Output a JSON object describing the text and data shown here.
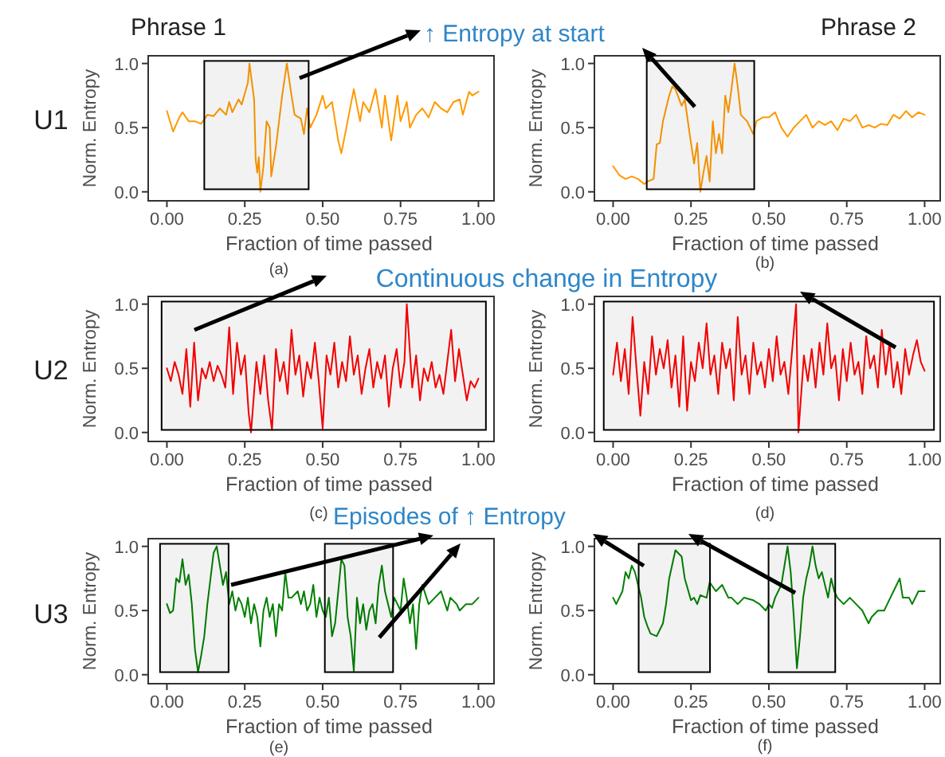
{
  "chart_data": [
    {
      "type": "line",
      "title": "Phrase 1",
      "xlabel": "Fraction of time passed",
      "ylabel": "Norm. Entropy",
      "xlim": [
        -0.06,
        1.05
      ],
      "xticks": [
        {
          "value": 0,
          "label": "0.00"
        },
        {
          "value": 0.25,
          "label": "0.25"
        },
        {
          "value": 0.5,
          "label": "0.50"
        },
        {
          "value": 0.75,
          "label": "0.75"
        },
        {
          "value": 1,
          "label": "1.00"
        }
      ],
      "ylim": [
        -0.07,
        1.06
      ],
      "yticks": [
        {
          "value": 0,
          "label": "0.0"
        },
        {
          "value": 0.5,
          "label": "0.5"
        },
        {
          "value": 1,
          "label": "1.0"
        }
      ],
      "series": [
        {
          "color": "#ff9900",
          "x": [
            0,
            0.02,
            0.04,
            0.05,
            0.07,
            0.09,
            0.11,
            0.13,
            0.15,
            0.17,
            0.19,
            0.2,
            0.21,
            0.23,
            0.24,
            0.26,
            0.265,
            0.28,
            0.285,
            0.29,
            0.295,
            0.3,
            0.31,
            0.32,
            0.33,
            0.335,
            0.35,
            0.37,
            0.385,
            0.4,
            0.41,
            0.43,
            0.44,
            0.45,
            0.46,
            0.48,
            0.5,
            0.51,
            0.53,
            0.55,
            0.56,
            0.58,
            0.6,
            0.62,
            0.63,
            0.65,
            0.67,
            0.69,
            0.7,
            0.72,
            0.74,
            0.75,
            0.77,
            0.78,
            0.8,
            0.82,
            0.84,
            0.86,
            0.88,
            0.9,
            0.92,
            0.94,
            0.95,
            0.97,
            0.98,
            1.0
          ],
          "values": [
            0.63,
            0.47,
            0.58,
            0.62,
            0.55,
            0.55,
            0.53,
            0.6,
            0.59,
            0.65,
            0.6,
            0.7,
            0.62,
            0.72,
            0.68,
            0.85,
            1.0,
            0.72,
            0.25,
            0.15,
            0.27,
            0.0,
            0.2,
            0.55,
            0.5,
            0.12,
            0.35,
            0.75,
            1.0,
            0.75,
            0.6,
            0.57,
            0.45,
            0.65,
            0.5,
            0.6,
            0.75,
            0.65,
            0.7,
            0.4,
            0.3,
            0.55,
            0.8,
            0.55,
            0.7,
            0.62,
            0.8,
            0.5,
            0.75,
            0.4,
            0.75,
            0.55,
            0.7,
            0.5,
            0.6,
            0.65,
            0.58,
            0.7,
            0.65,
            0.62,
            0.7,
            0.72,
            0.6,
            0.78,
            0.75,
            0.78
          ]
        }
      ],
      "bands": [
        {
          "axis": "x",
          "from": 0.12,
          "to": 0.455,
          "color": "#000000"
        }
      ],
      "annotations": [
        "U1",
        "↑ Entropy at start",
        "(a)"
      ]
    },
    {
      "type": "line",
      "title": "Phrase 2",
      "xlabel": "Fraction of time passed",
      "ylabel": "Norm. Entropy",
      "xlim": [
        -0.06,
        1.05
      ],
      "xticks": [
        {
          "value": 0,
          "label": "0.00"
        },
        {
          "value": 0.25,
          "label": "0.25"
        },
        {
          "value": 0.5,
          "label": "0.50"
        },
        {
          "value": 0.75,
          "label": "0.75"
        },
        {
          "value": 1,
          "label": "1.00"
        }
      ],
      "ylim": [
        -0.07,
        1.06
      ],
      "yticks": [
        {
          "value": 0,
          "label": "0.0"
        },
        {
          "value": 0.5,
          "label": "0.5"
        },
        {
          "value": 1,
          "label": "1.0"
        }
      ],
      "series": [
        {
          "color": "#ff9900",
          "x": [
            0,
            0.02,
            0.04,
            0.06,
            0.08,
            0.1,
            0.11,
            0.13,
            0.14,
            0.15,
            0.16,
            0.18,
            0.19,
            0.2,
            0.22,
            0.23,
            0.24,
            0.25,
            0.26,
            0.27,
            0.28,
            0.29,
            0.3,
            0.31,
            0.32,
            0.33,
            0.34,
            0.35,
            0.36,
            0.37,
            0.38,
            0.39,
            0.4,
            0.41,
            0.43,
            0.45,
            0.46,
            0.48,
            0.5,
            0.52,
            0.54,
            0.56,
            0.58,
            0.6,
            0.62,
            0.64,
            0.66,
            0.68,
            0.7,
            0.72,
            0.74,
            0.76,
            0.78,
            0.8,
            0.82,
            0.84,
            0.86,
            0.88,
            0.9,
            0.92,
            0.94,
            0.96,
            0.98,
            1.0
          ],
          "values": [
            0.2,
            0.13,
            0.1,
            0.12,
            0.1,
            0.06,
            0.08,
            0.1,
            0.37,
            0.38,
            0.55,
            0.75,
            0.82,
            0.8,
            0.67,
            0.72,
            0.55,
            0.38,
            0.22,
            0.38,
            0.0,
            0.15,
            0.28,
            0.08,
            0.55,
            0.3,
            0.45,
            0.3,
            0.75,
            0.62,
            0.8,
            1.0,
            0.82,
            0.6,
            0.55,
            0.45,
            0.55,
            0.58,
            0.58,
            0.62,
            0.5,
            0.43,
            0.5,
            0.55,
            0.6,
            0.5,
            0.55,
            0.52,
            0.55,
            0.48,
            0.57,
            0.55,
            0.6,
            0.5,
            0.52,
            0.5,
            0.53,
            0.52,
            0.6,
            0.57,
            0.63,
            0.58,
            0.62,
            0.6
          ]
        }
      ],
      "bands": [
        {
          "axis": "x",
          "from": 0.108,
          "to": 0.453,
          "color": "#000000"
        }
      ],
      "annotations": [
        "(b)"
      ]
    },
    {
      "type": "line",
      "xlabel": "Fraction of time passed",
      "ylabel": "Norm. Entropy",
      "xlim": [
        -0.06,
        1.05
      ],
      "xticks": [
        {
          "value": 0,
          "label": "0.00"
        },
        {
          "value": 0.25,
          "label": "0.25"
        },
        {
          "value": 0.5,
          "label": "0.50"
        },
        {
          "value": 0.75,
          "label": "0.75"
        },
        {
          "value": 1,
          "label": "1.00"
        }
      ],
      "ylim": [
        -0.07,
        1.06
      ],
      "yticks": [
        {
          "value": 0,
          "label": "0.0"
        },
        {
          "value": 0.5,
          "label": "0.5"
        },
        {
          "value": 1,
          "label": "1.0"
        }
      ],
      "series": [
        {
          "color": "#ff0000",
          "x": [
            0,
            0.0125,
            0.025,
            0.0375,
            0.05,
            0.0625,
            0.075,
            0.0875,
            0.1,
            0.1125,
            0.125,
            0.1375,
            0.15,
            0.1625,
            0.175,
            0.1875,
            0.2,
            0.2125,
            0.225,
            0.2375,
            0.25,
            0.2625,
            0.27,
            0.2875,
            0.3,
            0.3125,
            0.325,
            0.3375,
            0.35,
            0.3625,
            0.375,
            0.3875,
            0.4,
            0.4125,
            0.425,
            0.4375,
            0.45,
            0.4625,
            0.475,
            0.4875,
            0.5,
            0.5125,
            0.525,
            0.5375,
            0.55,
            0.5625,
            0.575,
            0.5875,
            0.6,
            0.6125,
            0.625,
            0.6375,
            0.65,
            0.6625,
            0.675,
            0.6875,
            0.7,
            0.7125,
            0.725,
            0.7375,
            0.75,
            0.7625,
            0.77,
            0.7875,
            0.8,
            0.8125,
            0.825,
            0.8375,
            0.85,
            0.8625,
            0.875,
            0.8875,
            0.9,
            0.9125,
            0.925,
            0.9375,
            0.95,
            0.9625,
            0.975,
            0.9875,
            1.0
          ],
          "values": [
            0.5,
            0.4,
            0.55,
            0.45,
            0.3,
            0.65,
            0.2,
            0.7,
            0.25,
            0.5,
            0.42,
            0.55,
            0.4,
            0.52,
            0.45,
            0.35,
            0.82,
            0.3,
            0.7,
            0.45,
            0.6,
            0.15,
            0.0,
            0.55,
            0.3,
            0.6,
            0.25,
            0.02,
            0.65,
            0.4,
            0.55,
            0.3,
            0.8,
            0.45,
            0.6,
            0.28,
            0.55,
            0.42,
            0.7,
            0.4,
            0.03,
            0.6,
            0.45,
            0.7,
            0.35,
            0.55,
            0.4,
            0.75,
            0.45,
            0.6,
            0.3,
            0.5,
            0.65,
            0.35,
            0.55,
            0.42,
            0.6,
            0.2,
            0.5,
            0.65,
            0.35,
            0.55,
            1.0,
            0.35,
            0.6,
            0.25,
            0.5,
            0.4,
            0.55,
            0.35,
            0.45,
            0.3,
            0.55,
            0.8,
            0.4,
            0.65,
            0.45,
            0.25,
            0.4,
            0.35,
            0.42
          ]
        }
      ],
      "bands": [
        {
          "axis": "x",
          "from": -0.017,
          "to": 1.024,
          "color": "#000000"
        }
      ],
      "annotations": [
        "U2",
        "Continuous change in Entropy",
        "(c)"
      ]
    },
    {
      "type": "line",
      "xlabel": "Fraction of time passed",
      "ylabel": "Norm. Entropy",
      "xlim": [
        -0.06,
        1.05
      ],
      "xticks": [
        {
          "value": 0,
          "label": "0.00"
        },
        {
          "value": 0.25,
          "label": "0.25"
        },
        {
          "value": 0.5,
          "label": "0.50"
        },
        {
          "value": 0.75,
          "label": "0.75"
        },
        {
          "value": 1,
          "label": "1.00"
        }
      ],
      "ylim": [
        -0.07,
        1.06
      ],
      "yticks": [
        {
          "value": 0,
          "label": "0.0"
        },
        {
          "value": 0.5,
          "label": "0.5"
        },
        {
          "value": 1,
          "label": "1.0"
        }
      ],
      "series": [
        {
          "color": "#ff0000",
          "x": [
            0,
            0.0125,
            0.025,
            0.0375,
            0.05,
            0.0625,
            0.075,
            0.0875,
            0.1,
            0.1125,
            0.125,
            0.1375,
            0.15,
            0.1625,
            0.175,
            0.1875,
            0.2,
            0.2125,
            0.225,
            0.2375,
            0.25,
            0.2625,
            0.275,
            0.2875,
            0.3,
            0.3125,
            0.325,
            0.3375,
            0.35,
            0.3625,
            0.375,
            0.3875,
            0.4,
            0.4125,
            0.425,
            0.4375,
            0.45,
            0.4625,
            0.475,
            0.4875,
            0.5,
            0.5125,
            0.525,
            0.5375,
            0.55,
            0.5625,
            0.575,
            0.5875,
            0.595,
            0.6125,
            0.625,
            0.6375,
            0.65,
            0.6625,
            0.675,
            0.6875,
            0.7,
            0.7125,
            0.725,
            0.7375,
            0.75,
            0.7625,
            0.775,
            0.7875,
            0.8,
            0.8125,
            0.825,
            0.8375,
            0.85,
            0.8625,
            0.875,
            0.8875,
            0.9,
            0.9125,
            0.925,
            0.9375,
            0.95,
            0.9625,
            0.975,
            0.9875,
            1.0
          ],
          "values": [
            0.45,
            0.7,
            0.4,
            0.65,
            0.3,
            0.9,
            0.5,
            0.13,
            0.55,
            0.3,
            0.75,
            0.45,
            0.65,
            0.5,
            0.72,
            0.35,
            0.6,
            0.2,
            0.75,
            0.17,
            0.55,
            0.4,
            0.7,
            0.5,
            0.85,
            0.45,
            0.6,
            0.3,
            0.7,
            0.5,
            0.65,
            0.25,
            0.9,
            0.45,
            0.6,
            0.3,
            0.7,
            0.45,
            0.55,
            0.35,
            0.65,
            0.4,
            0.75,
            0.45,
            0.55,
            0.3,
            0.65,
            1.0,
            0.0,
            0.6,
            0.4,
            0.65,
            0.35,
            0.7,
            0.45,
            0.85,
            0.5,
            0.6,
            0.25,
            0.65,
            0.4,
            0.7,
            0.45,
            0.55,
            0.3,
            0.75,
            0.5,
            0.6,
            0.35,
            0.8,
            0.45,
            0.7,
            0.35,
            0.55,
            0.3,
            0.65,
            0.45,
            0.6,
            0.72,
            0.55,
            0.48
          ]
        }
      ],
      "bands": [
        {
          "axis": "x",
          "from": -0.03,
          "to": 1.03,
          "color": "#000000"
        }
      ],
      "annotations": [
        "(d)"
      ]
    },
    {
      "type": "line",
      "xlabel": "Fraction of time passed",
      "ylabel": "Norm. Entropy",
      "xlim": [
        -0.06,
        1.05
      ],
      "xticks": [
        {
          "value": 0,
          "label": "0.00"
        },
        {
          "value": 0.25,
          "label": "0.25"
        },
        {
          "value": 0.5,
          "label": "0.50"
        },
        {
          "value": 0.75,
          "label": "0.75"
        },
        {
          "value": 1,
          "label": "1.00"
        }
      ],
      "ylim": [
        -0.07,
        1.06
      ],
      "yticks": [
        {
          "value": 0,
          "label": "0.0"
        },
        {
          "value": 0.5,
          "label": "0.5"
        },
        {
          "value": 1,
          "label": "1.0"
        }
      ],
      "series": [
        {
          "color": "#008000",
          "x": [
            0,
            0.01,
            0.02,
            0.03,
            0.04,
            0.05,
            0.06,
            0.07,
            0.08,
            0.09,
            0.1,
            0.11,
            0.12,
            0.13,
            0.14,
            0.15,
            0.16,
            0.17,
            0.18,
            0.19,
            0.2,
            0.21,
            0.22,
            0.23,
            0.24,
            0.25,
            0.26,
            0.27,
            0.28,
            0.29,
            0.3,
            0.31,
            0.32,
            0.33,
            0.34,
            0.35,
            0.36,
            0.37,
            0.38,
            0.39,
            0.4,
            0.42,
            0.43,
            0.44,
            0.45,
            0.46,
            0.47,
            0.48,
            0.49,
            0.5,
            0.51,
            0.52,
            0.53,
            0.54,
            0.55,
            0.56,
            0.57,
            0.58,
            0.59,
            0.6,
            0.61,
            0.62,
            0.63,
            0.64,
            0.65,
            0.66,
            0.67,
            0.68,
            0.69,
            0.7,
            0.71,
            0.72,
            0.73,
            0.75,
            0.76,
            0.77,
            0.78,
            0.79,
            0.8,
            0.81,
            0.82,
            0.84,
            0.86,
            0.88,
            0.9,
            0.91,
            0.93,
            0.94,
            0.96,
            0.98,
            1.0
          ],
          "values": [
            0.55,
            0.48,
            0.5,
            0.75,
            0.72,
            0.9,
            0.7,
            0.78,
            0.55,
            0.2,
            0.02,
            0.15,
            0.3,
            0.55,
            0.75,
            0.95,
            1.0,
            0.85,
            0.7,
            0.8,
            0.55,
            0.65,
            0.5,
            0.6,
            0.55,
            0.45,
            0.6,
            0.4,
            0.55,
            0.45,
            0.22,
            0.5,
            0.6,
            0.45,
            0.55,
            0.3,
            0.55,
            0.5,
            0.8,
            0.6,
            0.6,
            0.65,
            0.55,
            0.65,
            0.5,
            0.55,
            0.7,
            0.45,
            0.6,
            0.5,
            0.45,
            0.6,
            0.3,
            0.4,
            0.65,
            0.9,
            0.85,
            0.45,
            0.3,
            0.03,
            0.6,
            0.4,
            0.55,
            0.35,
            0.5,
            0.55,
            0.4,
            0.7,
            0.85,
            0.65,
            0.55,
            0.45,
            0.6,
            0.5,
            0.75,
            0.6,
            0.4,
            0.55,
            0.2,
            0.55,
            0.7,
            0.55,
            0.6,
            0.65,
            0.5,
            0.6,
            0.55,
            0.5,
            0.55,
            0.55,
            0.6
          ]
        }
      ],
      "bands": [
        {
          "axis": "x",
          "from": -0.022,
          "to": 0.198,
          "color": "#000000"
        },
        {
          "axis": "x",
          "from": 0.507,
          "to": 0.726,
          "color": "#000000"
        }
      ],
      "annotations": [
        "U3",
        "Episodes of ↑ Entropy",
        "(e)"
      ]
    },
    {
      "type": "line",
      "xlabel": "Fraction of time passed",
      "ylabel": "Norm. Entropy",
      "xlim": [
        -0.06,
        1.05
      ],
      "xticks": [
        {
          "value": 0,
          "label": "0.00"
        },
        {
          "value": 0.25,
          "label": "0.25"
        },
        {
          "value": 0.5,
          "label": "0.50"
        },
        {
          "value": 0.75,
          "label": "0.75"
        },
        {
          "value": 1,
          "label": "1.00"
        }
      ],
      "ylim": [
        -0.07,
        1.06
      ],
      "yticks": [
        {
          "value": 0,
          "label": "0.0"
        },
        {
          "value": 0.5,
          "label": "0.5"
        },
        {
          "value": 1,
          "label": "1.0"
        }
      ],
      "series": [
        {
          "color": "#008000",
          "x": [
            0,
            0.01,
            0.03,
            0.04,
            0.05,
            0.06,
            0.07,
            0.08,
            0.09,
            0.1,
            0.11,
            0.12,
            0.14,
            0.16,
            0.17,
            0.18,
            0.2,
            0.22,
            0.23,
            0.25,
            0.26,
            0.27,
            0.28,
            0.3,
            0.31,
            0.33,
            0.35,
            0.37,
            0.38,
            0.4,
            0.42,
            0.45,
            0.47,
            0.49,
            0.5,
            0.51,
            0.52,
            0.54,
            0.55,
            0.56,
            0.57,
            0.58,
            0.59,
            0.6,
            0.61,
            0.62,
            0.63,
            0.64,
            0.65,
            0.66,
            0.67,
            0.68,
            0.69,
            0.7,
            0.71,
            0.72,
            0.74,
            0.76,
            0.78,
            0.8,
            0.82,
            0.83,
            0.85,
            0.87,
            0.89,
            0.91,
            0.92,
            0.93,
            0.95,
            0.96,
            0.98,
            1.0
          ],
          "values": [
            0.6,
            0.55,
            0.65,
            0.8,
            0.75,
            0.85,
            0.8,
            0.7,
            0.6,
            0.45,
            0.38,
            0.32,
            0.3,
            0.4,
            0.55,
            0.75,
            0.97,
            0.92,
            0.75,
            0.58,
            0.6,
            0.55,
            0.62,
            0.6,
            0.72,
            0.65,
            0.7,
            0.6,
            0.6,
            0.55,
            0.6,
            0.58,
            0.55,
            0.5,
            0.55,
            0.52,
            0.6,
            0.7,
            0.85,
            1.0,
            0.8,
            0.45,
            0.05,
            0.3,
            0.6,
            0.75,
            0.85,
            1.0,
            0.85,
            0.75,
            0.8,
            0.7,
            0.6,
            0.75,
            0.65,
            0.6,
            0.55,
            0.6,
            0.55,
            0.5,
            0.4,
            0.45,
            0.5,
            0.5,
            0.6,
            0.7,
            0.75,
            0.6,
            0.6,
            0.55,
            0.65,
            0.65
          ]
        }
      ],
      "bands": [
        {
          "axis": "x",
          "from": 0.082,
          "to": 0.311,
          "color": "#000000"
        },
        {
          "axis": "x",
          "from": 0.499,
          "to": 0.713,
          "color": "#000000"
        }
      ],
      "annotations": [
        "(f)"
      ]
    }
  ]
}
